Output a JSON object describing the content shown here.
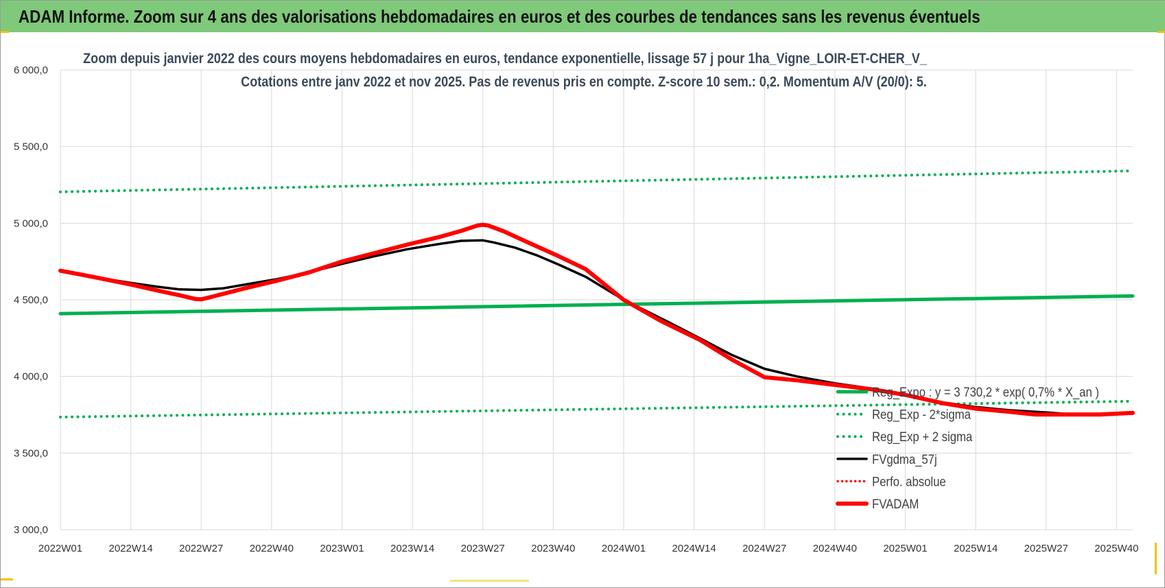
{
  "banner": {
    "title": "ADAM Informe. Zoom sur 4 ans des valorisations hebdomadaires en euros et des courbes de tendances sans les revenus éventuels"
  },
  "colors": {
    "banner_bg": "#7fc97a",
    "green": "#00b050",
    "black": "#000000",
    "red": "#ff0000",
    "grid": "#d9d9d9"
  },
  "chart_data": {
    "type": "line",
    "title_line1": "Zoom depuis janvier 2022 des cours moyens hebdomadaires en euros, tendance exponentielle, lissage 57 j pour 1ha_Vigne_LOIR-ET-CHER_V_",
    "title_line2": "Cotations entre janv 2022 et nov 2025. Pas de revenus pris en compte. Z-score 10 sem.: 0,2. Momentum A/V (20/0): 5.",
    "xlabel": "",
    "ylabel": "",
    "ylim": [
      3000,
      6000
    ],
    "x_range": [
      0,
      198
    ],
    "y_ticks": [
      {
        "value": 3000,
        "label": "3 000,0"
      },
      {
        "value": 3500,
        "label": "3 500,0"
      },
      {
        "value": 4000,
        "label": "4 000,0"
      },
      {
        "value": 4500,
        "label": "4 500,0"
      },
      {
        "value": 5000,
        "label": "5 000,0"
      },
      {
        "value": 5500,
        "label": "5 500,0"
      },
      {
        "value": 6000,
        "label": "6 000,0"
      }
    ],
    "x_ticks": [
      {
        "index": 0,
        "label": "2022W01"
      },
      {
        "index": 13,
        "label": "2022W14"
      },
      {
        "index": 26,
        "label": "2022W27"
      },
      {
        "index": 39,
        "label": "2022W40"
      },
      {
        "index": 52,
        "label": "2023W01"
      },
      {
        "index": 65,
        "label": "2023W14"
      },
      {
        "index": 78,
        "label": "2023W27"
      },
      {
        "index": 91,
        "label": "2023W40"
      },
      {
        "index": 104,
        "label": "2024W01"
      },
      {
        "index": 117,
        "label": "2024W14"
      },
      {
        "index": 130,
        "label": "2024W27"
      },
      {
        "index": 143,
        "label": "2024W40"
      },
      {
        "index": 156,
        "label": "2025W01"
      },
      {
        "index": 169,
        "label": "2025W14"
      },
      {
        "index": 182,
        "label": "2025W27"
      },
      {
        "index": 195,
        "label": "2025W40"
      }
    ],
    "grid": true,
    "legend_position": "bottom-right",
    "series": [
      {
        "name": "Reg_Expo : y = 3 730,2 * exp( 0,7% *  X_an )",
        "style": "solid",
        "color": "#00b050",
        "width": 5,
        "points": [
          [
            0,
            4410
          ],
          [
            198,
            4525
          ]
        ]
      },
      {
        "name": "Reg_Exp - 2*sigma",
        "style": "dotted",
        "color": "#00b050",
        "width": 4,
        "points": [
          [
            0,
            3735
          ],
          [
            198,
            3838
          ]
        ]
      },
      {
        "name": "Reg_Exp + 2 sigma",
        "style": "dotted",
        "color": "#00b050",
        "width": 4,
        "points": [
          [
            0,
            5205
          ],
          [
            198,
            5342
          ]
        ]
      },
      {
        "name": "FVgdma_57j",
        "style": "solid",
        "color": "#000000",
        "width": 3.5,
        "points": [
          [
            0,
            4690
          ],
          [
            6,
            4650
          ],
          [
            13,
            4610
          ],
          [
            18,
            4585
          ],
          [
            22,
            4568
          ],
          [
            26,
            4565
          ],
          [
            30,
            4575
          ],
          [
            35,
            4605
          ],
          [
            40,
            4635
          ],
          [
            46,
            4680
          ],
          [
            52,
            4735
          ],
          [
            58,
            4785
          ],
          [
            64,
            4830
          ],
          [
            70,
            4865
          ],
          [
            74,
            4885
          ],
          [
            78,
            4888
          ],
          [
            80,
            4875
          ],
          [
            84,
            4840
          ],
          [
            88,
            4790
          ],
          [
            92,
            4730
          ],
          [
            97,
            4650
          ],
          [
            104,
            4500
          ],
          [
            112,
            4360
          ],
          [
            118,
            4250
          ],
          [
            124,
            4140
          ],
          [
            130,
            4050
          ],
          [
            136,
            4000
          ],
          [
            143,
            3955
          ],
          [
            150,
            3920
          ],
          [
            156,
            3880
          ],
          [
            163,
            3830
          ],
          [
            169,
            3800
          ],
          [
            175,
            3780
          ],
          [
            182,
            3765
          ],
          [
            186,
            3755
          ],
          [
            192,
            3752
          ],
          [
            198,
            3760
          ]
        ]
      },
      {
        "name": "Perfo. absolue",
        "style": "dotted",
        "color": "#ff0000",
        "width": 3,
        "points": []
      },
      {
        "name": "FVADAM",
        "style": "solid",
        "color": "#ff0000",
        "width": 6,
        "points": [
          [
            0,
            4690
          ],
          [
            6,
            4650
          ],
          [
            13,
            4600
          ],
          [
            18,
            4560
          ],
          [
            22,
            4530
          ],
          [
            25,
            4505
          ],
          [
            26,
            4503
          ],
          [
            28,
            4520
          ],
          [
            34,
            4575
          ],
          [
            40,
            4625
          ],
          [
            46,
            4680
          ],
          [
            52,
            4750
          ],
          [
            58,
            4805
          ],
          [
            64,
            4860
          ],
          [
            70,
            4910
          ],
          [
            74,
            4950
          ],
          [
            77,
            4985
          ],
          [
            78,
            4990
          ],
          [
            79,
            4985
          ],
          [
            82,
            4945
          ],
          [
            86,
            4880
          ],
          [
            92,
            4785
          ],
          [
            97,
            4700
          ],
          [
            104,
            4500
          ],
          [
            111,
            4360
          ],
          [
            118,
            4240
          ],
          [
            124,
            4110
          ],
          [
            130,
            3995
          ],
          [
            136,
            3975
          ],
          [
            143,
            3945
          ],
          [
            150,
            3915
          ],
          [
            156,
            3880
          ],
          [
            163,
            3825
          ],
          [
            169,
            3790
          ],
          [
            175,
            3770
          ],
          [
            180,
            3752
          ],
          [
            186,
            3752
          ],
          [
            192,
            3752
          ],
          [
            198,
            3762
          ]
        ]
      }
    ]
  }
}
